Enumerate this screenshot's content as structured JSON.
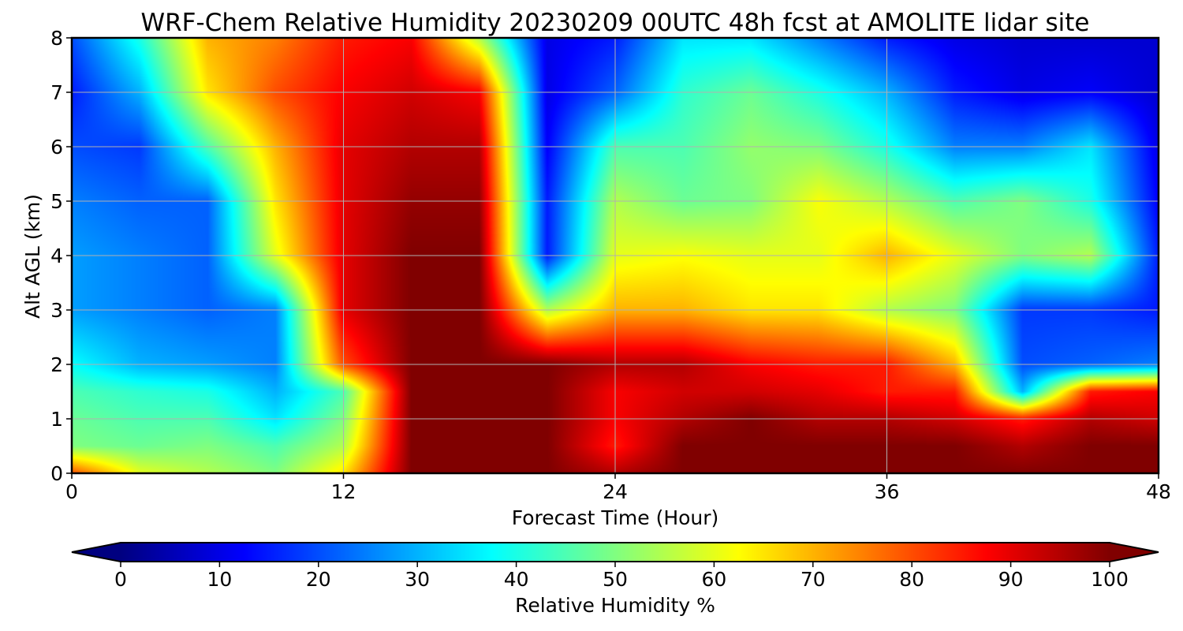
{
  "chart_data": {
    "type": "heatmap",
    "title": "WRF-Chem Relative Humidity 20230209 00UTC 48h fcst at AMOLITE lidar site",
    "xlabel": "Forecast Time (Hour)",
    "ylabel": "Alt AGL (km)",
    "xlim": [
      0,
      48
    ],
    "ylim": [
      0,
      8
    ],
    "x_ticks": [
      0,
      12,
      24,
      36,
      48
    ],
    "x_tick_labels": [
      "0",
      "12",
      "24",
      "36",
      "48"
    ],
    "y_ticks": [
      0,
      1,
      2,
      3,
      4,
      5,
      6,
      7,
      8
    ],
    "y_tick_labels": [
      "0",
      "1",
      "2",
      "3",
      "4",
      "5",
      "6",
      "7",
      "8"
    ],
    "grid": true,
    "colormap": "jet",
    "colorbar": {
      "label": "Relative Humidity %",
      "range": [
        0,
        100
      ],
      "extend": "both",
      "orientation": "horizontal",
      "ticks": [
        0,
        10,
        20,
        30,
        40,
        50,
        60,
        70,
        80,
        90,
        100
      ],
      "tick_labels": [
        "0",
        "10",
        "20",
        "30",
        "40",
        "50",
        "60",
        "70",
        "80",
        "90",
        "100"
      ]
    },
    "x": [
      0,
      3,
      6,
      9,
      12,
      15,
      18,
      21,
      24,
      27,
      30,
      33,
      36,
      39,
      42,
      45,
      48
    ],
    "y": [
      0,
      0.5,
      1,
      1.5,
      2,
      3,
      4,
      5,
      6,
      7,
      8
    ],
    "values": [
      [
        80,
        60,
        55,
        50,
        65,
        100,
        100,
        100,
        95,
        100,
        100,
        100,
        100,
        100,
        100,
        100,
        100
      ],
      [
        50,
        48,
        50,
        45,
        55,
        100,
        100,
        100,
        85,
        100,
        100,
        100,
        100,
        100,
        95,
        100,
        100
      ],
      [
        48,
        45,
        45,
        35,
        50,
        100,
        100,
        100,
        88,
        95,
        100,
        95,
        95,
        92,
        85,
        95,
        92
      ],
      [
        45,
        42,
        40,
        30,
        45,
        100,
        100,
        100,
        88,
        92,
        92,
        90,
        85,
        85,
        30,
        85,
        88
      ],
      [
        38,
        30,
        28,
        25,
        80,
        100,
        100,
        100,
        95,
        95,
        88,
        85,
        85,
        70,
        20,
        22,
        25
      ],
      [
        28,
        25,
        22,
        25,
        90,
        100,
        100,
        55,
        70,
        70,
        65,
        65,
        55,
        50,
        18,
        18,
        15
      ],
      [
        28,
        25,
        22,
        60,
        90,
        100,
        100,
        15,
        60,
        62,
        60,
        60,
        70,
        60,
        50,
        55,
        15
      ],
      [
        25,
        22,
        22,
        65,
        90,
        98,
        98,
        15,
        55,
        48,
        50,
        62,
        55,
        45,
        50,
        40,
        12
      ],
      [
        20,
        18,
        45,
        70,
        90,
        95,
        95,
        12,
        45,
        45,
        52,
        50,
        40,
        25,
        25,
        35,
        10
      ],
      [
        15,
        30,
        65,
        80,
        88,
        92,
        88,
        10,
        22,
        42,
        48,
        40,
        30,
        15,
        10,
        12,
        8
      ],
      [
        20,
        40,
        70,
        75,
        85,
        88,
        55,
        10,
        15,
        35,
        35,
        25,
        15,
        10,
        8,
        8,
        8
      ]
    ]
  }
}
